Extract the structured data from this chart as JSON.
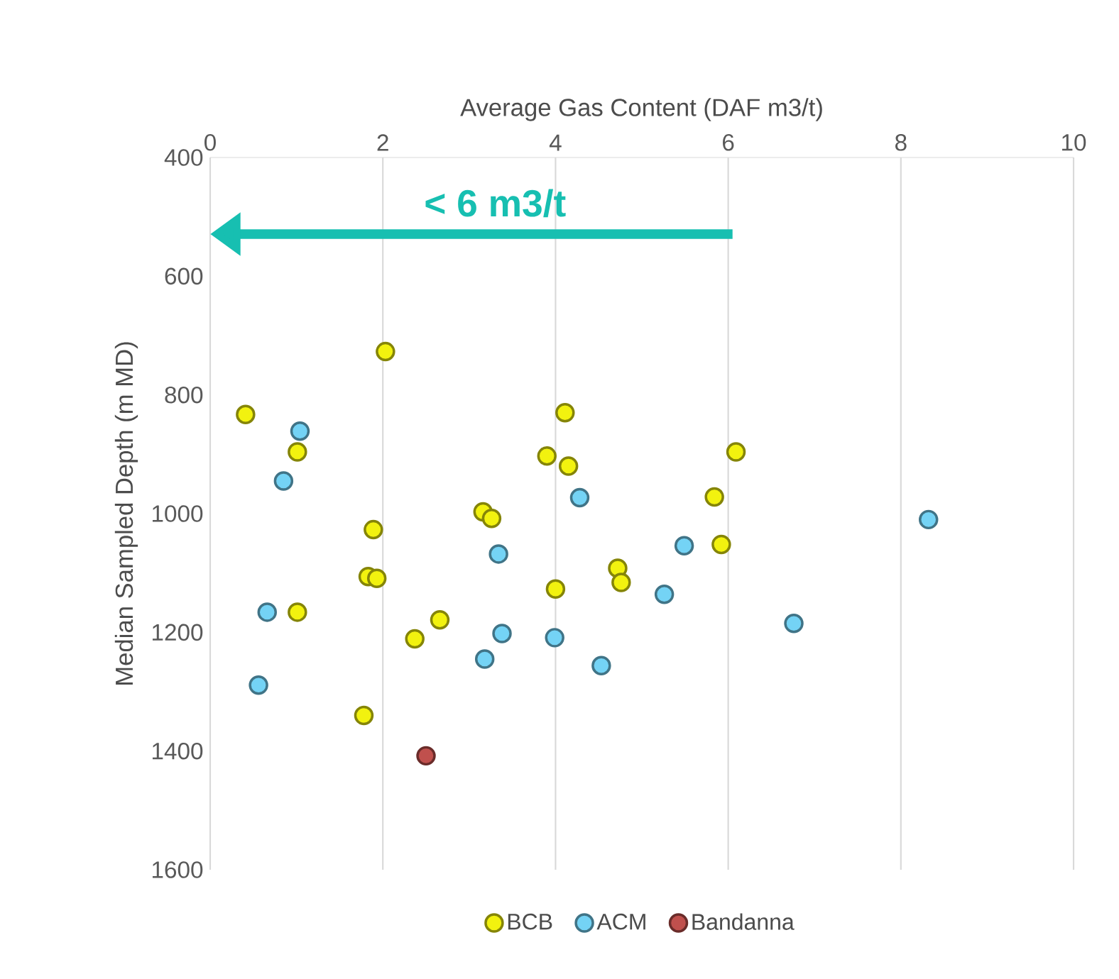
{
  "chart_data": {
    "type": "scatter",
    "xlabel": "Average Gas Content (DAF m3/t)",
    "ylabel": "Median Sampled Depth (m MD)",
    "xlim": [
      0,
      10
    ],
    "xticks": [
      0,
      2,
      4,
      6,
      8,
      10
    ],
    "ylim": [
      1600,
      400
    ],
    "yticks": [
      400,
      600,
      800,
      1000,
      1200,
      1400,
      1600
    ],
    "grid": "x",
    "legend": "bottom",
    "marker": "circle",
    "annotations": [
      "< 6 m3/t"
    ],
    "series": [
      {
        "name": "BCB",
        "color": "#f2f20f",
        "x": [
          2.03,
          0.41,
          1.01,
          1.89,
          1.83,
          1.93,
          1.01,
          2.66,
          2.37,
          1.78,
          3.16,
          3.26,
          3.9,
          4.11,
          4.15,
          4.72,
          4.76,
          4.0,
          6.09,
          5.84,
          5.92
        ],
        "values": [
          727,
          833,
          896,
          1027,
          1106,
          1109,
          1166,
          1179,
          1211,
          1340,
          997,
          1008,
          903,
          830,
          920,
          1092,
          1116,
          1127,
          896,
          972,
          1052
        ]
      },
      {
        "name": "ACM",
        "color": "#74d3f5",
        "x": [
          1.04,
          0.85,
          0.66,
          0.56,
          3.34,
          3.38,
          3.18,
          4.28,
          3.99,
          4.53,
          8.32,
          5.49,
          5.26,
          6.76
        ],
        "values": [
          861,
          945,
          1166,
          1289,
          1068,
          1202,
          1245,
          973,
          1209,
          1256,
          1010,
          1054,
          1136,
          1185
        ]
      },
      {
        "name": "Bandanna",
        "color": "#c0504d",
        "x": [
          2.5
        ],
        "values": [
          1408
        ]
      }
    ]
  }
}
